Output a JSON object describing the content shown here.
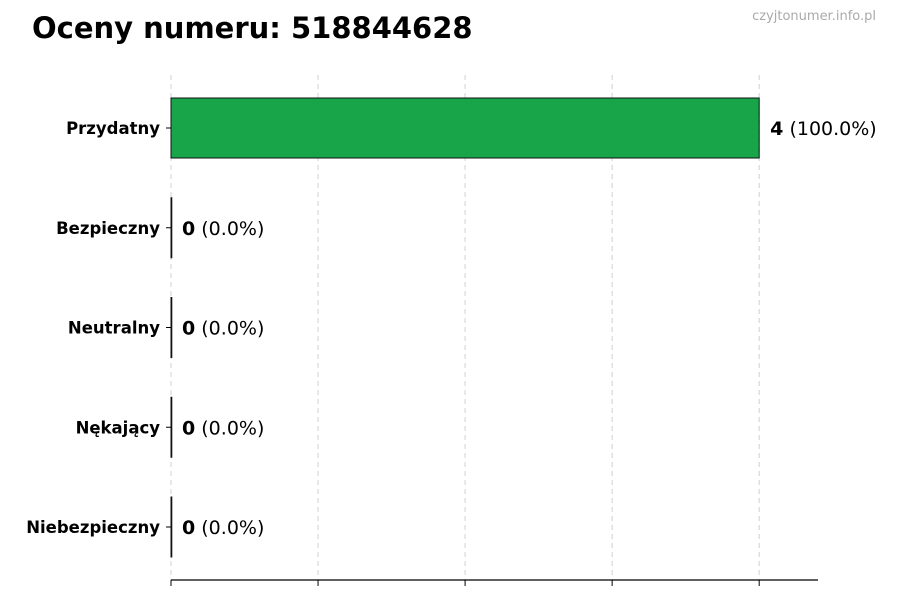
{
  "title": "Oceny numeru: 518844628",
  "watermark": "czyjtonumer.info.pl",
  "chart_data": {
    "type": "bar",
    "orientation": "horizontal",
    "categories": [
      "Przydatny",
      "Bezpieczny",
      "Neutralny",
      "Nękający",
      "Niebezpieczny"
    ],
    "values": [
      4,
      0,
      0,
      0,
      0
    ],
    "data_labels": [
      {
        "count": "4",
        "percent": "(100.0%)"
      },
      {
        "count": "0",
        "percent": "(0.0%)"
      },
      {
        "count": "0",
        "percent": "(0.0%)"
      },
      {
        "count": "0",
        "percent": "(0.0%)"
      },
      {
        "count": "0",
        "percent": "(0.0%)"
      }
    ],
    "bar_color": "#18a54a",
    "xlim": [
      0,
      4.4
    ],
    "xticks": [
      0,
      1,
      2,
      3,
      4
    ],
    "xtick_labels_shown": false,
    "grid": "x-dashed",
    "xlabel": "",
    "ylabel": ""
  }
}
